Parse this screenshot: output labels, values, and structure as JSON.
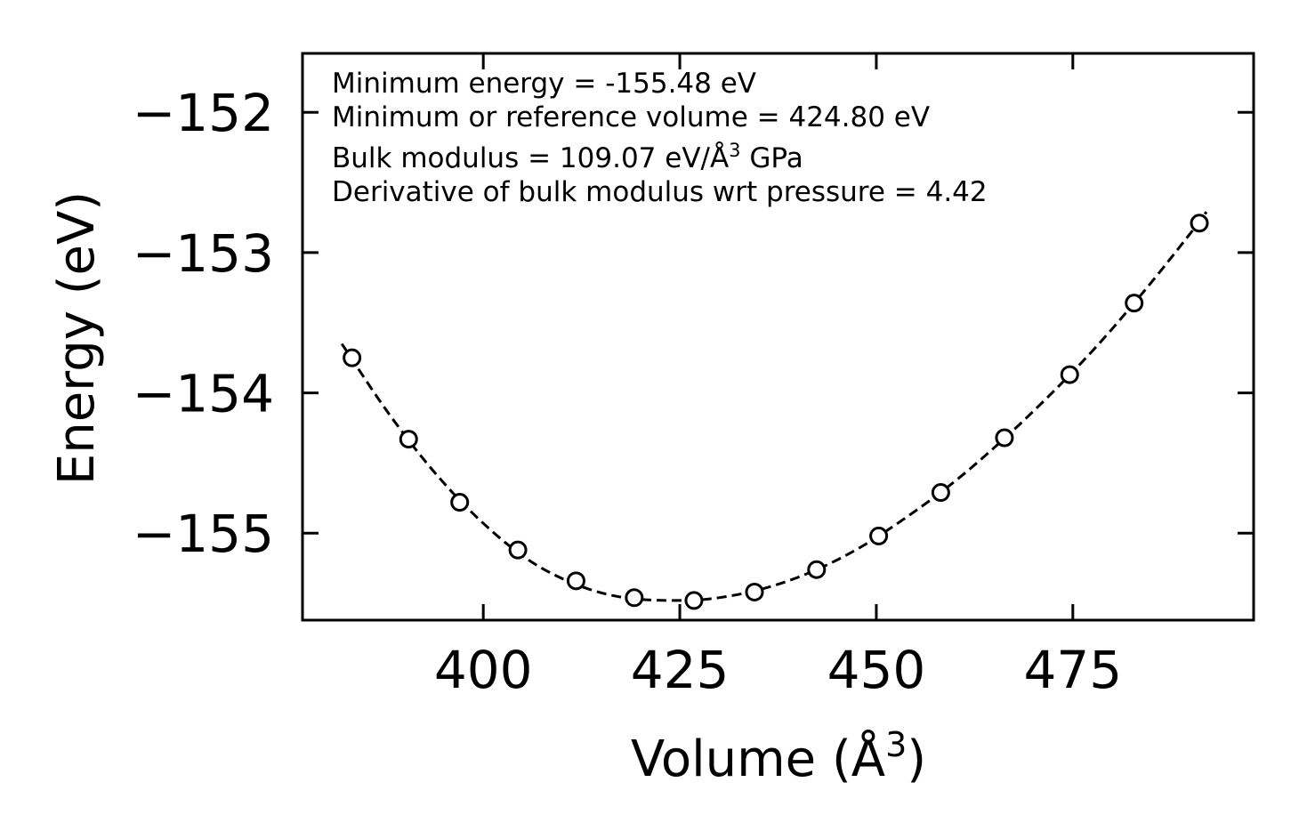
{
  "chart_data": {
    "type": "scatter",
    "title": "",
    "xlabel": "Volume (Å3)",
    "xlabel_parts": {
      "base": "Volume (Å",
      "sup": "3",
      "close": ")"
    },
    "ylabel": "Energy (eV)",
    "xlim": [
      377,
      498
    ],
    "ylim": [
      -155.62,
      -151.58
    ],
    "xticks": [
      400,
      425,
      450,
      475
    ],
    "xtick_labels": [
      "400",
      "425",
      "450",
      "475"
    ],
    "yticks": [
      -152,
      -153,
      -154,
      -155
    ],
    "ytick_labels": [
      "−152",
      "−153",
      "−154",
      "−155"
    ],
    "grid": false,
    "legend": "none",
    "series": [
      {
        "name": "data",
        "style": "open-circle",
        "x": [
          383.3,
          390.5,
          397.0,
          404.4,
          411.8,
          419.2,
          426.8,
          434.5,
          442.4,
          450.3,
          458.2,
          466.3,
          474.6,
          482.8,
          491.1
        ],
        "y": [
          -153.75,
          -154.33,
          -154.78,
          -155.12,
          -155.34,
          -155.46,
          -155.48,
          -155.42,
          -155.26,
          -155.02,
          -154.71,
          -154.32,
          -153.87,
          -153.36,
          -152.79
        ]
      },
      {
        "name": "fit",
        "style": "dashed-line",
        "x": [
          382.0,
          388.0,
          394.0,
          400.0,
          406.0,
          412.0,
          418.0,
          424.8,
          430.0,
          436.0,
          442.0,
          448.0,
          454.0,
          460.0,
          466.0,
          472.0,
          478.0,
          484.0,
          490.0,
          492.0
        ],
        "y": [
          -153.65,
          -154.15,
          -154.58,
          -154.93,
          -155.2,
          -155.37,
          -155.46,
          -155.48,
          -155.46,
          -155.39,
          -155.27,
          -155.1,
          -154.88,
          -154.63,
          -154.34,
          -154.02,
          -153.67,
          -153.28,
          -152.86,
          -152.71
        ]
      }
    ],
    "annotations": [
      "Minimum energy = -155.48 eV",
      "Minimum or reference volume = 424.80 eV",
      "Bulk modulus = 109.07 eV/Å3 GPa",
      "Derivative of bulk modulus wrt pressure = 4.42"
    ],
    "annotation_bulk_parts": {
      "base": "Bulk modulus = 109.07 eV/Å",
      "sup": "3",
      "rest": " GPa"
    }
  }
}
